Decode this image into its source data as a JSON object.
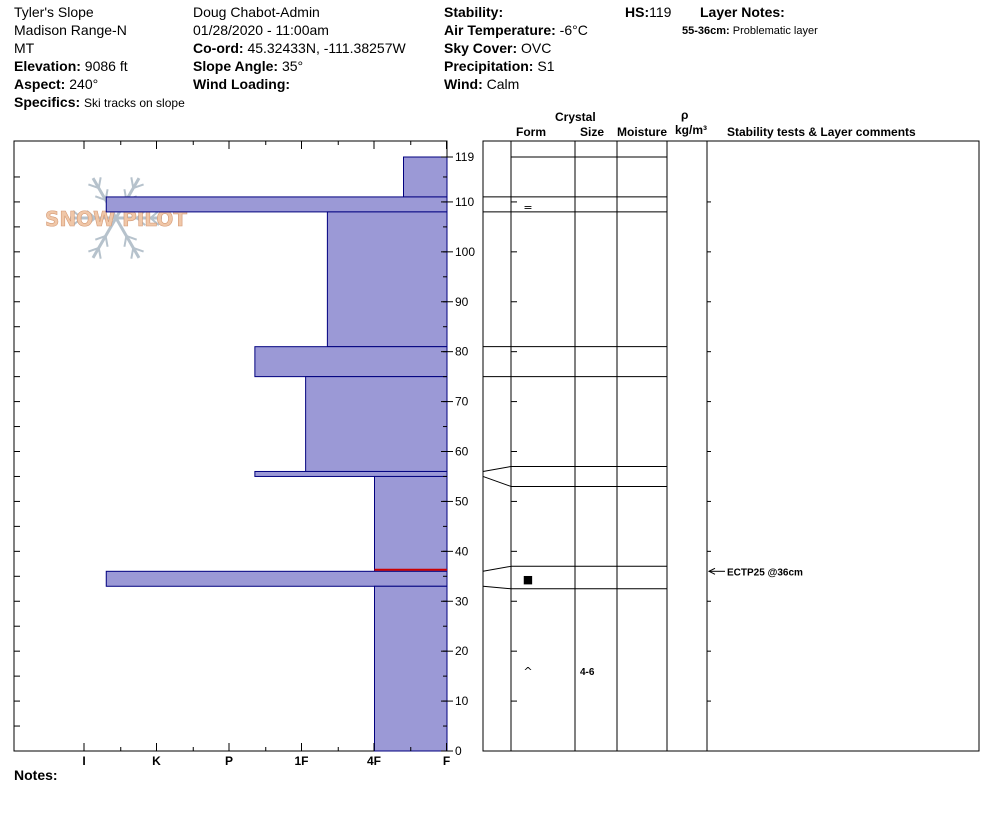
{
  "header": {
    "site": "Tyler's Slope",
    "range": "Madison Range-N",
    "state": "MT",
    "elevation_label": "Elevation:",
    "elevation_value": "9086 ft",
    "aspect_label": "Aspect:",
    "aspect_value": "240°",
    "specifics_label": "Specifics:",
    "specifics_value": "Ski tracks on slope",
    "observer": "Doug Chabot-Admin",
    "datetime": "01/28/2020 - 11:00am",
    "coord_label": "Co-ord:",
    "coord_value": "45.32433N, -111.38257W",
    "slope_label": "Slope Angle:",
    "slope_value": "35°",
    "wind_loading_label": "Wind Loading:",
    "wind_loading_value": "",
    "stability_label": "Stability:",
    "stability_value": "",
    "air_temp_label": "Air Temperature:",
    "air_temp_value": "-6°C",
    "sky_label": "Sky Cover:",
    "sky_value": "OVC",
    "precip_label": "Precipitation:",
    "precip_value": "S1",
    "wind_label": "Wind:",
    "wind_value": "Calm",
    "hs_label": "HS:",
    "hs_value": "119",
    "layer_notes_label": "Layer Notes:",
    "layer_note_range": "55-36cm:",
    "layer_note_text": "Problematic layer",
    "notes_label": "Notes:"
  },
  "columns": {
    "crystal": "Crystal",
    "form": "Form",
    "size": "Size",
    "moisture": "Moisture",
    "rho": "ρ",
    "density_unit": "kg/m³",
    "stability_tests": "Stability tests & Layer comments"
  },
  "logo_text": "SNOW PILOT",
  "colors": {
    "fill": "#9b99d6",
    "stroke": "#00007f",
    "red_line": "#cc0000",
    "grid": "#000000",
    "logo_snowflake": "#b6c2cc",
    "logo_text": "#f0c7a8"
  },
  "chart_data": {
    "type": "snow-profile",
    "ylim": [
      0,
      119
    ],
    "y_ticks": [
      0,
      10,
      20,
      30,
      40,
      50,
      60,
      70,
      80,
      90,
      100,
      110,
      119
    ],
    "hardness_scale": [
      "I",
      "K",
      "P",
      "1F",
      "4F",
      "F"
    ],
    "hardness_note": "values are index into scale, measured from F (0) toward I (5); 0.6 = F+, 1.5 = 4F-, 3.6 = K+",
    "layers": [
      {
        "top": 119,
        "bottom": 111,
        "hardness": 0.6
      },
      {
        "top": 111,
        "bottom": 108,
        "hardness": 4.7
      },
      {
        "top": 108,
        "bottom": 81,
        "hardness": 1.65
      },
      {
        "top": 81,
        "bottom": 75,
        "hardness": 2.65
      },
      {
        "top": 75,
        "bottom": 56,
        "hardness": 1.95
      },
      {
        "top": 56,
        "bottom": 55,
        "hardness": 2.65
      },
      {
        "top": 55,
        "bottom": 36,
        "hardness": 1.0
      },
      {
        "top": 36,
        "bottom": 33,
        "hardness": 4.7
      },
      {
        "top": 33,
        "bottom": 0,
        "hardness": 1.0
      }
    ],
    "red_line_height": 36.3,
    "table_lines": [
      119,
      111,
      108,
      81,
      75,
      57,
      53,
      37,
      32.5
    ],
    "grain_forms": [
      {
        "height": 109,
        "symbol": "="
      },
      {
        "height": 34.5,
        "symbol": "■"
      },
      {
        "height": 16,
        "symbol": "^"
      }
    ],
    "grain_sizes": [
      {
        "height": 16,
        "text": "4-6"
      }
    ],
    "stability_tests": [
      {
        "height": 36,
        "text": "ECTP25 @36cm"
      }
    ]
  }
}
